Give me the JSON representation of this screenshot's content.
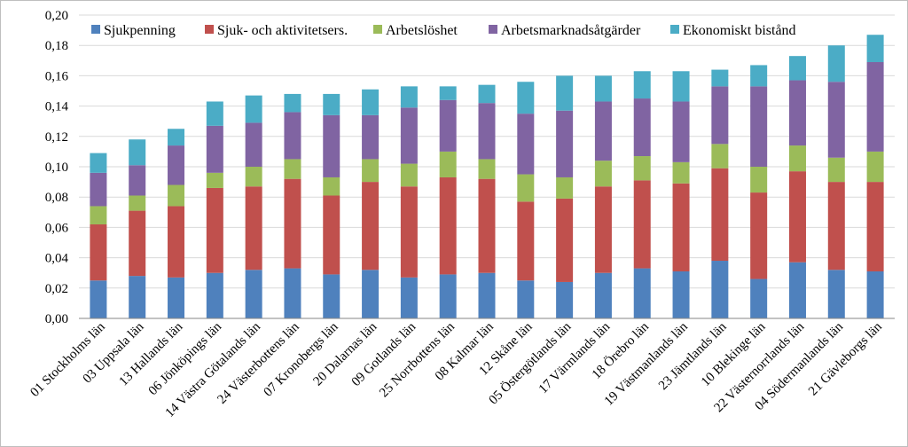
{
  "chart_data": {
    "type": "bar",
    "stacked": true,
    "title": "",
    "xlabel": "",
    "ylabel": "",
    "ylim": [
      0,
      0.2
    ],
    "y_ticks": [
      "0,00",
      "0,02",
      "0,04",
      "0,06",
      "0,08",
      "0,10",
      "0,12",
      "0,14",
      "0,16",
      "0,18",
      "0,20"
    ],
    "grid": true,
    "legend_position": "top",
    "categories": [
      "01 Stockholms län",
      "03 Uppsala län",
      "13 Hallands län",
      "06 Jönköpings län",
      "14 Västra Götalands län",
      "24 Västerbottens län",
      "07 Kronobergs län",
      "20 Dalarnas län",
      "09 Gotlands län",
      "25 Norrbottens län",
      "08 Kalmar län",
      "12 Skåne län",
      "05 Östergötlands län",
      "17 Värmlands län",
      "18 Örebro län",
      "19 Västmanlands län",
      "23 Jämtlands län",
      "10 Blekinge län",
      "22 Västernorrlands län",
      "04 Södermanlands län",
      "21 Gävleborgs län"
    ],
    "series": [
      {
        "name": "Sjukpenning",
        "color": "#4f81bd",
        "values": [
          0.025,
          0.028,
          0.027,
          0.03,
          0.032,
          0.033,
          0.029,
          0.032,
          0.027,
          0.029,
          0.03,
          0.025,
          0.024,
          0.03,
          0.033,
          0.031,
          0.038,
          0.026,
          0.037,
          0.032,
          0.031
        ]
      },
      {
        "name": "Sjuk- och aktivitetsers.",
        "color": "#c0504d",
        "values": [
          0.037,
          0.043,
          0.047,
          0.056,
          0.055,
          0.059,
          0.052,
          0.058,
          0.06,
          0.064,
          0.062,
          0.052,
          0.055,
          0.057,
          0.058,
          0.058,
          0.061,
          0.057,
          0.06,
          0.058,
          0.059
        ]
      },
      {
        "name": "Arbetslöshet",
        "color": "#9bbb59",
        "values": [
          0.012,
          0.01,
          0.014,
          0.01,
          0.013,
          0.013,
          0.012,
          0.015,
          0.015,
          0.017,
          0.013,
          0.018,
          0.014,
          0.017,
          0.016,
          0.014,
          0.016,
          0.017,
          0.017,
          0.016,
          0.02
        ]
      },
      {
        "name": "Arbetsmarknadsåtgärder",
        "color": "#8064a2",
        "values": [
          0.022,
          0.02,
          0.026,
          0.031,
          0.029,
          0.031,
          0.041,
          0.029,
          0.037,
          0.034,
          0.037,
          0.04,
          0.044,
          0.039,
          0.038,
          0.04,
          0.038,
          0.053,
          0.043,
          0.05,
          0.059
        ]
      },
      {
        "name": "Ekonomiskt bistånd",
        "color": "#4bacc6",
        "values": [
          0.013,
          0.017,
          0.011,
          0.016,
          0.018,
          0.012,
          0.014,
          0.017,
          0.014,
          0.009,
          0.012,
          0.021,
          0.023,
          0.017,
          0.018,
          0.02,
          0.011,
          0.014,
          0.016,
          0.024,
          0.018
        ]
      }
    ]
  }
}
